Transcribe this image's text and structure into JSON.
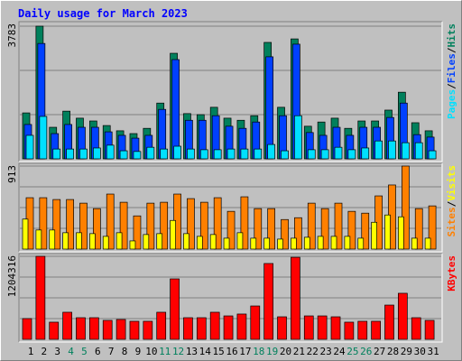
{
  "chart_data": [
    {
      "type": "bar",
      "title": "Daily usage for March 2023",
      "ylim": [
        0,
        3783
      ],
      "yticks": [
        3783
      ],
      "legend_separator": "/",
      "series": [
        {
          "name": "Hits",
          "color": "#00805c",
          "values": [
            1310,
            3783,
            900,
            1360,
            1160,
            1080,
            950,
            800,
            720,
            870,
            1590,
            3010,
            1290,
            1260,
            1470,
            1160,
            1100,
            1230,
            3320,
            1470,
            3420,
            930,
            1050,
            1160,
            870,
            1080,
            1080,
            1390,
            1900,
            1030,
            800
          ]
        },
        {
          "name": "Files",
          "color": "#0040ff",
          "values": [
            980,
            3290,
            720,
            980,
            900,
            900,
            770,
            670,
            590,
            670,
            1410,
            2830,
            1100,
            1100,
            1230,
            930,
            870,
            1050,
            2910,
            1230,
            3270,
            750,
            670,
            900,
            670,
            900,
            900,
            1180,
            1590,
            690,
            620
          ]
        },
        {
          "name": "Pages",
          "color": "#00e0ff",
          "values": [
            670,
            1210,
            280,
            280,
            280,
            310,
            390,
            230,
            210,
            330,
            280,
            360,
            280,
            260,
            260,
            280,
            280,
            280,
            410,
            230,
            1230,
            260,
            260,
            330,
            260,
            310,
            510,
            510,
            460,
            460,
            230
          ]
        }
      ]
    },
    {
      "type": "bar",
      "ylim": [
        0,
        913
      ],
      "yticks": [
        913
      ],
      "legend_separator": "/",
      "series": [
        {
          "name": "Visits",
          "color": "#ffff00",
          "values": [
            330,
            210,
            210,
            180,
            180,
            170,
            140,
            180,
            90,
            160,
            170,
            315,
            170,
            140,
            160,
            120,
            180,
            120,
            120,
            110,
            120,
            130,
            140,
            140,
            140,
            120,
            295,
            375,
            355,
            120,
            120
          ]
        },
        {
          "name": "Sites",
          "color": "#ff8000",
          "values": [
            565,
            565,
            545,
            545,
            505,
            445,
            605,
            515,
            365,
            505,
            515,
            605,
            555,
            515,
            565,
            415,
            575,
            445,
            445,
            325,
            345,
            505,
            445,
            505,
            415,
            395,
            585,
            705,
            913,
            445,
            475
          ]
        }
      ]
    },
    {
      "type": "bar",
      "ylim": [
        0,
        1204316
      ],
      "yticks": [
        1204316
      ],
      "series": [
        {
          "name": "KBytes",
          "color": "#ff0000",
          "values": [
            301000,
            1204316,
            249000,
            393000,
            314000,
            314000,
            275000,
            288000,
            262000,
            262000,
            393000,
            877000,
            314000,
            314000,
            393000,
            340000,
            367000,
            484000,
            1100000,
            327000,
            1190000,
            340000,
            340000,
            327000,
            249000,
            262000,
            262000,
            497000,
            668000,
            314000,
            275000
          ]
        }
      ],
      "categories": [
        "1",
        "2",
        "3",
        "4",
        "5",
        "6",
        "7",
        "8",
        "9",
        "10",
        "11",
        "12",
        "13",
        "14",
        "15",
        "16",
        "17",
        "18",
        "19",
        "20",
        "21",
        "22",
        "23",
        "24",
        "25",
        "26",
        "27",
        "28",
        "29",
        "30",
        "31"
      ],
      "category_colors": [
        "#000000",
        "#000000",
        "#000000",
        "#00805c",
        "#00805c",
        "#000000",
        "#000000",
        "#000000",
        "#000000",
        "#000000",
        "#00805c",
        "#00805c",
        "#000000",
        "#000000",
        "#000000",
        "#000000",
        "#000000",
        "#00805c",
        "#00805c",
        "#000000",
        "#000000",
        "#000000",
        "#000000",
        "#000000",
        "#00805c",
        "#00805c",
        "#000000",
        "#000000",
        "#000000",
        "#000000",
        "#000000"
      ]
    }
  ]
}
